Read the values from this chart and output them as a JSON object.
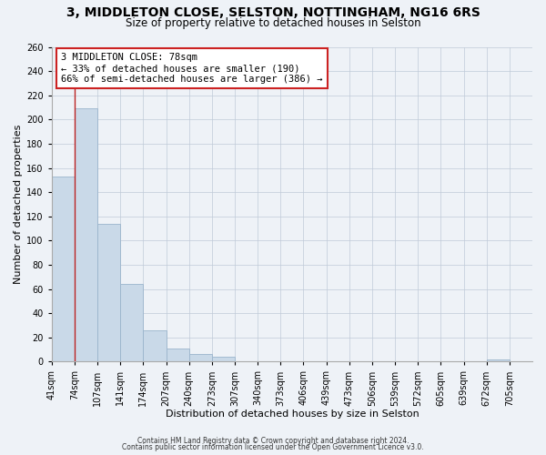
{
  "title_line1": "3, MIDDLETON CLOSE, SELSTON, NOTTINGHAM, NG16 6RS",
  "title_line2": "Size of property relative to detached houses in Selston",
  "xlabel": "Distribution of detached houses by size in Selston",
  "ylabel": "Number of detached properties",
  "bar_labels": [
    "41sqm",
    "74sqm",
    "107sqm",
    "141sqm",
    "174sqm",
    "207sqm",
    "240sqm",
    "273sqm",
    "307sqm",
    "340sqm",
    "373sqm",
    "406sqm",
    "439sqm",
    "473sqm",
    "506sqm",
    "539sqm",
    "572sqm",
    "605sqm",
    "639sqm",
    "672sqm",
    "705sqm"
  ],
  "bar_values": [
    153,
    209,
    114,
    64,
    26,
    11,
    6,
    4,
    0,
    0,
    0,
    0,
    0,
    0,
    0,
    0,
    0,
    0,
    0,
    2,
    0
  ],
  "bar_color": "#c9d9e8",
  "bar_edge_color": "#9ab4cc",
  "ylim": [
    0,
    260
  ],
  "yticks": [
    0,
    20,
    40,
    60,
    80,
    100,
    120,
    140,
    160,
    180,
    200,
    220,
    240,
    260
  ],
  "vline_x": 1.0,
  "vline_color": "#bb2222",
  "annotation_title": "3 MIDDLETON CLOSE: 78sqm",
  "annotation_line1": "← 33% of detached houses are smaller (190)",
  "annotation_line2": "66% of semi-detached houses are larger (386) →",
  "annotation_box_color": "#ffffff",
  "annotation_box_edge": "#cc2222",
  "footer_line1": "Contains HM Land Registry data © Crown copyright and database right 2024.",
  "footer_line2": "Contains public sector information licensed under the Open Government Licence v3.0.",
  "background_color": "#eef2f7",
  "grid_color": "#c0cad8",
  "title_fontsize": 10,
  "subtitle_fontsize": 8.5,
  "xlabel_fontsize": 8,
  "ylabel_fontsize": 8,
  "tick_fontsize": 7,
  "footer_fontsize": 5.5
}
